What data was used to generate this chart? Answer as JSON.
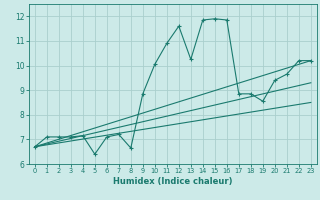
{
  "title": "",
  "xlabel": "Humidex (Indice chaleur)",
  "bg_color": "#cceae8",
  "grid_color": "#aacfcd",
  "line_color": "#1a7a6e",
  "xlim": [
    -0.5,
    23.5
  ],
  "ylim": [
    6,
    12.5
  ],
  "xticks": [
    0,
    1,
    2,
    3,
    4,
    5,
    6,
    7,
    8,
    9,
    10,
    11,
    12,
    13,
    14,
    15,
    16,
    17,
    18,
    19,
    20,
    21,
    22,
    23
  ],
  "yticks": [
    6,
    7,
    8,
    9,
    10,
    11,
    12
  ],
  "main_x": [
    0,
    1,
    2,
    3,
    4,
    5,
    6,
    7,
    8,
    9,
    10,
    11,
    12,
    13,
    14,
    15,
    16,
    17,
    18,
    19,
    20,
    21,
    22,
    23
  ],
  "main_y": [
    6.7,
    7.1,
    7.1,
    7.1,
    7.15,
    6.4,
    7.1,
    7.2,
    6.65,
    8.85,
    10.05,
    10.9,
    11.6,
    10.25,
    11.85,
    11.9,
    11.85,
    8.85,
    8.85,
    8.55,
    9.4,
    9.65,
    10.2,
    10.2
  ],
  "line1_x": [
    0,
    23
  ],
  "line1_y": [
    6.7,
    10.2
  ],
  "line2_x": [
    0,
    23
  ],
  "line2_y": [
    6.7,
    9.3
  ],
  "line3_x": [
    0,
    23
  ],
  "line3_y": [
    6.7,
    8.5
  ]
}
